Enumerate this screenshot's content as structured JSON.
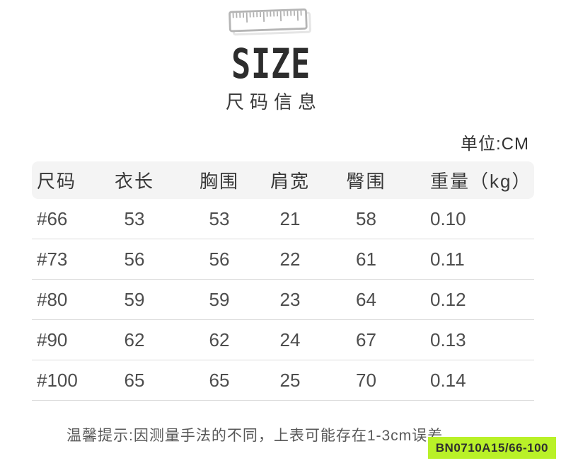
{
  "header": {
    "icon": "ruler-icon",
    "title": "SIZE",
    "subtitle": "尺码信息"
  },
  "unit_label": "单位:CM",
  "table": {
    "headers": [
      "尺码",
      "衣长",
      "胸围",
      "肩宽",
      "臀围",
      "重量（kg）"
    ],
    "rows": [
      [
        "#66",
        "53",
        "53",
        "21",
        "58",
        "0.10"
      ],
      [
        "#73",
        "56",
        "56",
        "22",
        "61",
        "0.11"
      ],
      [
        "#80",
        "59",
        "59",
        "23",
        "64",
        "0.12"
      ],
      [
        "#90",
        "62",
        "62",
        "24",
        "67",
        "0.13"
      ],
      [
        "#100",
        "65",
        "65",
        "25",
        "70",
        "0.14"
      ]
    ]
  },
  "note": "温馨提示:因测量手法的不同，上表可能存在1-3cm误差",
  "product_code": "BN0710A15/66-100",
  "colors": {
    "badge_bg": "#b9f128",
    "header_row_bg": "#f4f4f4",
    "divider": "#dcdcdc",
    "title_text": "#2d2d2d"
  }
}
